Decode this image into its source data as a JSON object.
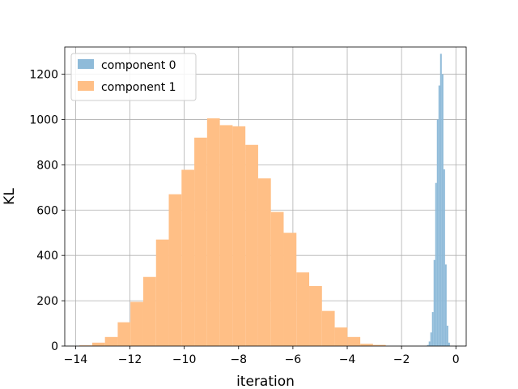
{
  "chart_data": {
    "type": "bar",
    "histogram": true,
    "xlabel": "iteration",
    "ylabel": "KL",
    "xlim": [
      -14.4,
      0.38
    ],
    "ylim": [
      0,
      1320
    ],
    "xticks": [
      -14,
      -12,
      -10,
      -8,
      -6,
      -4,
      -2,
      0
    ],
    "yticks": [
      0,
      200,
      400,
      600,
      800,
      1000,
      1200
    ],
    "grid": true,
    "legend_position": "top-left",
    "colors": {
      "component_0": "#1f77b4",
      "component_1": "#ff7f0e",
      "grid": "#b0b0b0"
    },
    "series": [
      {
        "name": "component 1",
        "color": "#ffbf86",
        "bin_width": 0.47,
        "bin_starts": [
          -13.86,
          -13.39,
          -12.92,
          -12.45,
          -11.98,
          -11.51,
          -11.04,
          -10.57,
          -10.1,
          -9.63,
          -9.16,
          -8.69,
          -8.22,
          -7.75,
          -7.28,
          -6.81,
          -6.34,
          -5.87,
          -5.4,
          -4.93,
          -4.46,
          -3.99,
          -3.52,
          -3.05
        ],
        "values": [
          3,
          15,
          40,
          105,
          195,
          305,
          470,
          670,
          778,
          920,
          1005,
          975,
          970,
          888,
          740,
          592,
          500,
          325,
          265,
          155,
          82,
          40,
          10,
          5
        ]
      },
      {
        "name": "component 0",
        "color": "#8fbbd9",
        "bin_width": 0.06,
        "bin_starts": [
          -1.06,
          -1.0,
          -0.94,
          -0.88,
          -0.82,
          -0.76,
          -0.7,
          -0.64,
          -0.58,
          -0.52,
          -0.46,
          -0.4,
          -0.34,
          -0.28
        ],
        "values": [
          5,
          20,
          60,
          150,
          380,
          720,
          1000,
          1150,
          1290,
          1200,
          780,
          360,
          90,
          15
        ]
      }
    ],
    "legend": [
      "component 0",
      "component 1"
    ]
  }
}
